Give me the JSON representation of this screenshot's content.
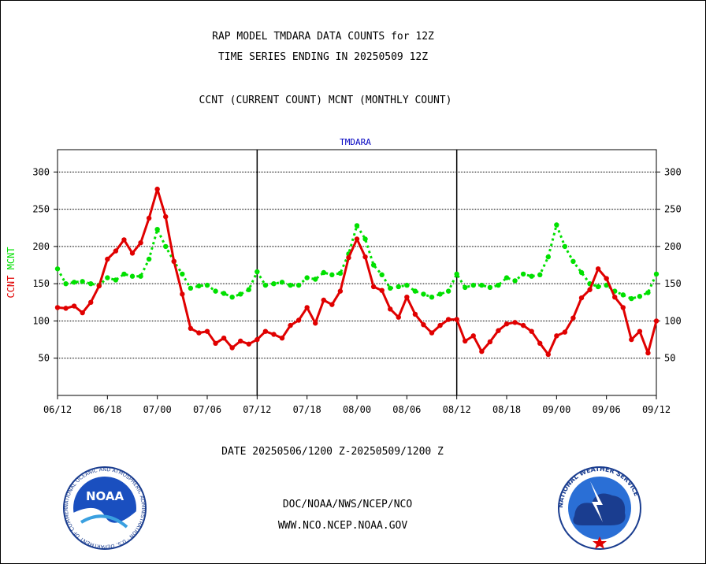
{
  "titles": {
    "line1": "RAP MODEL TMDARA DATA COUNTS for 12Z",
    "line2": "TIME SERIES ENDING IN 20250509 12Z",
    "line3": "CCNT (CURRENT COUNT) MCNT (MONTHLY COUNT)"
  },
  "footer": {
    "date_range": "DATE 20250506/1200 Z-20250509/1200 Z",
    "org": "DOC/NOAA/NWS/NCEP/NCO",
    "url": "WWW.NCO.NCEP.NOAA.GOV"
  },
  "logos": {
    "left": {
      "text": "NOAA",
      "ring": "NATIONAL OCEANIC AND ATMOSPHERIC ADMINISTRATION · U.S. DEPARTMENT OF COMMERCE"
    },
    "right": {
      "ring": "NATIONAL WEATHER SERVICE"
    }
  },
  "colors": {
    "ccnt": "#e00000",
    "mcnt": "#00e000",
    "panel_label": "#0000c0",
    "footer_text": "#0000c0",
    "date_text": "#e00000"
  },
  "chart_data": {
    "type": "line",
    "title": "TMDARA",
    "ylabel_parts": [
      {
        "text": "CCNT",
        "color": "#e00000"
      },
      {
        "text": "MCNT",
        "color": "#00e000"
      }
    ],
    "ylim": [
      0,
      330
    ],
    "yticks": [
      50,
      100,
      150,
      200,
      250,
      300
    ],
    "xtick_labels": [
      "06/12",
      "06/18",
      "07/00",
      "07/06",
      "07/12",
      "07/18",
      "08/00",
      "08/06",
      "08/12",
      "08/18",
      "09/00",
      "09/06",
      "09/12"
    ],
    "x_range_hours": [
      0,
      72
    ],
    "grid": true,
    "series": [
      {
        "name": "CCNT",
        "color": "#e00000",
        "x": [
          0,
          1,
          2,
          3,
          4,
          5,
          6,
          7,
          8,
          9,
          10,
          11,
          12,
          13,
          14,
          15,
          16,
          17,
          18,
          19,
          20,
          21,
          22,
          23,
          24,
          25,
          26,
          27,
          28,
          29,
          30,
          31,
          32,
          33,
          34,
          35,
          36,
          37,
          38,
          39,
          40,
          41,
          42,
          43,
          44,
          45,
          46,
          47,
          48,
          49,
          50,
          51,
          52,
          53,
          54,
          55,
          56,
          57,
          58,
          59,
          60,
          61,
          62,
          63,
          64,
          65,
          66,
          67,
          68,
          69,
          70,
          71,
          72
        ],
        "values": [
          118,
          117,
          120,
          111,
          125,
          147,
          183,
          194,
          209,
          191,
          205,
          238,
          277,
          240,
          180,
          136,
          90,
          84,
          86,
          70,
          77,
          64,
          73,
          69,
          75,
          86,
          82,
          77,
          94,
          101,
          118,
          97,
          128,
          122,
          140,
          185,
          210,
          186,
          146,
          141,
          116,
          105,
          132,
          109,
          95,
          84,
          94,
          102,
          102,
          73,
          80,
          59,
          72,
          87,
          96,
          98,
          94,
          86,
          70,
          55,
          80,
          85,
          104,
          131,
          142,
          170,
          157,
          132,
          118,
          75,
          86,
          57,
          100
        ]
      },
      {
        "name": "MCNT",
        "color": "#00e000",
        "x": [
          0,
          1,
          2,
          3,
          4,
          5,
          6,
          7,
          8,
          9,
          10,
          11,
          12,
          13,
          14,
          15,
          16,
          17,
          18,
          19,
          20,
          21,
          22,
          23,
          24,
          25,
          26,
          27,
          28,
          29,
          30,
          31,
          32,
          33,
          34,
          35,
          36,
          37,
          38,
          39,
          40,
          41,
          42,
          43,
          44,
          45,
          46,
          47,
          48,
          49,
          50,
          51,
          52,
          53,
          54,
          55,
          56,
          57,
          58,
          59,
          60,
          61,
          62,
          63,
          64,
          65,
          66,
          67,
          68,
          69,
          70,
          71,
          72
        ],
        "values": [
          170,
          150,
          152,
          153,
          150,
          148,
          158,
          155,
          163,
          160,
          160,
          183,
          223,
          200,
          180,
          163,
          144,
          147,
          148,
          140,
          137,
          132,
          136,
          142,
          166,
          148,
          150,
          152,
          148,
          148,
          158,
          156,
          165,
          162,
          164,
          190,
          228,
          210,
          175,
          162,
          144,
          146,
          148,
          140,
          136,
          132,
          136,
          140,
          163,
          145,
          148,
          148,
          145,
          148,
          158,
          154,
          163,
          160,
          162,
          186,
          229,
          200,
          180,
          165,
          150,
          146,
          148,
          140,
          135,
          130,
          133,
          138,
          163
        ]
      }
    ]
  }
}
